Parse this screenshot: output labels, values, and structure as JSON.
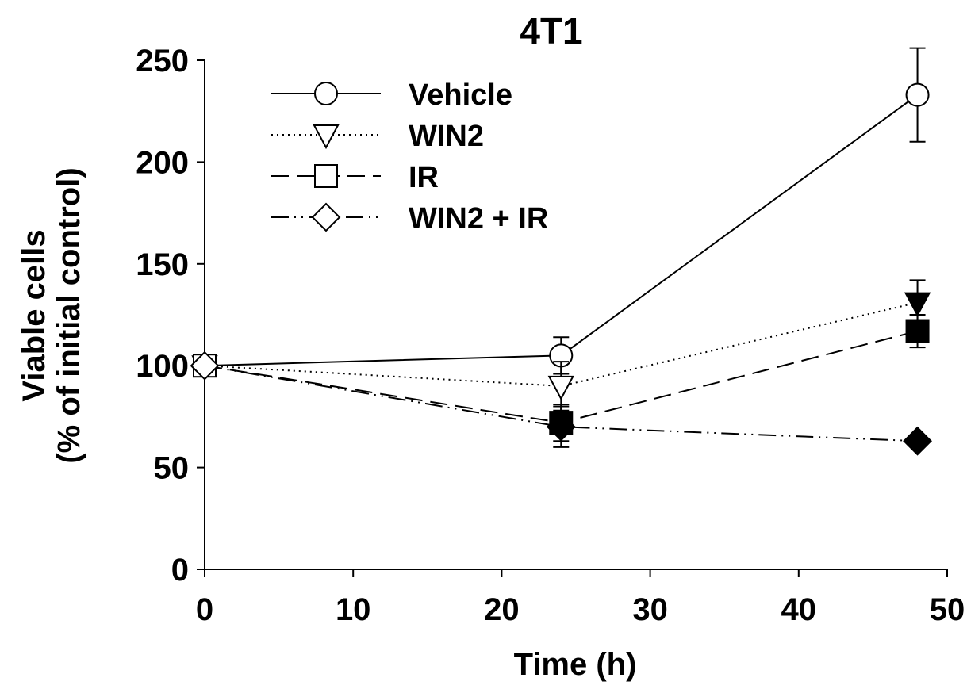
{
  "chart_data": {
    "type": "line",
    "title": "4T1",
    "xlabel": "Time (h)",
    "ylabel": [
      "Viable cells",
      "(% of initial control)"
    ],
    "xlim": [
      0,
      50
    ],
    "ylim": [
      0,
      250
    ],
    "xticks": [
      0,
      10,
      20,
      30,
      40,
      50
    ],
    "yticks": [
      0,
      50,
      100,
      150,
      200,
      250
    ],
    "grid": false,
    "legend_position": "top-left",
    "x": [
      0,
      24,
      48
    ],
    "series": [
      {
        "name": "Vehicle",
        "values": [
          100,
          105,
          233
        ],
        "errors": [
          0,
          9,
          23
        ],
        "marker": "circle",
        "line_style": "solid",
        "fill": [
          "white",
          "white",
          "white"
        ],
        "legend_marker_fill": "white"
      },
      {
        "name": "WIN2",
        "values": [
          100,
          90,
          131
        ],
        "errors": [
          0,
          12,
          11
        ],
        "marker": "triangle-down",
        "line_style": "dotted",
        "fill": [
          "white",
          "white",
          "black"
        ],
        "legend_marker_fill": "white"
      },
      {
        "name": "IR",
        "values": [
          100,
          72,
          117
        ],
        "errors": [
          0,
          9,
          8
        ],
        "marker": "square",
        "line_style": "dashed",
        "fill": [
          "white",
          "black",
          "black"
        ],
        "legend_marker_fill": "white"
      },
      {
        "name": "WIN2 + IR",
        "values": [
          100,
          70,
          63
        ],
        "errors": [
          0,
          10,
          0
        ],
        "marker": "diamond",
        "line_style": "dash-dot-dot",
        "fill": [
          "white",
          "black",
          "black"
        ],
        "legend_marker_fill": "white"
      }
    ],
    "colors": {
      "line": "#000000",
      "marker_edge": "#000000",
      "filled": "#000000",
      "open": "#ffffff"
    }
  }
}
